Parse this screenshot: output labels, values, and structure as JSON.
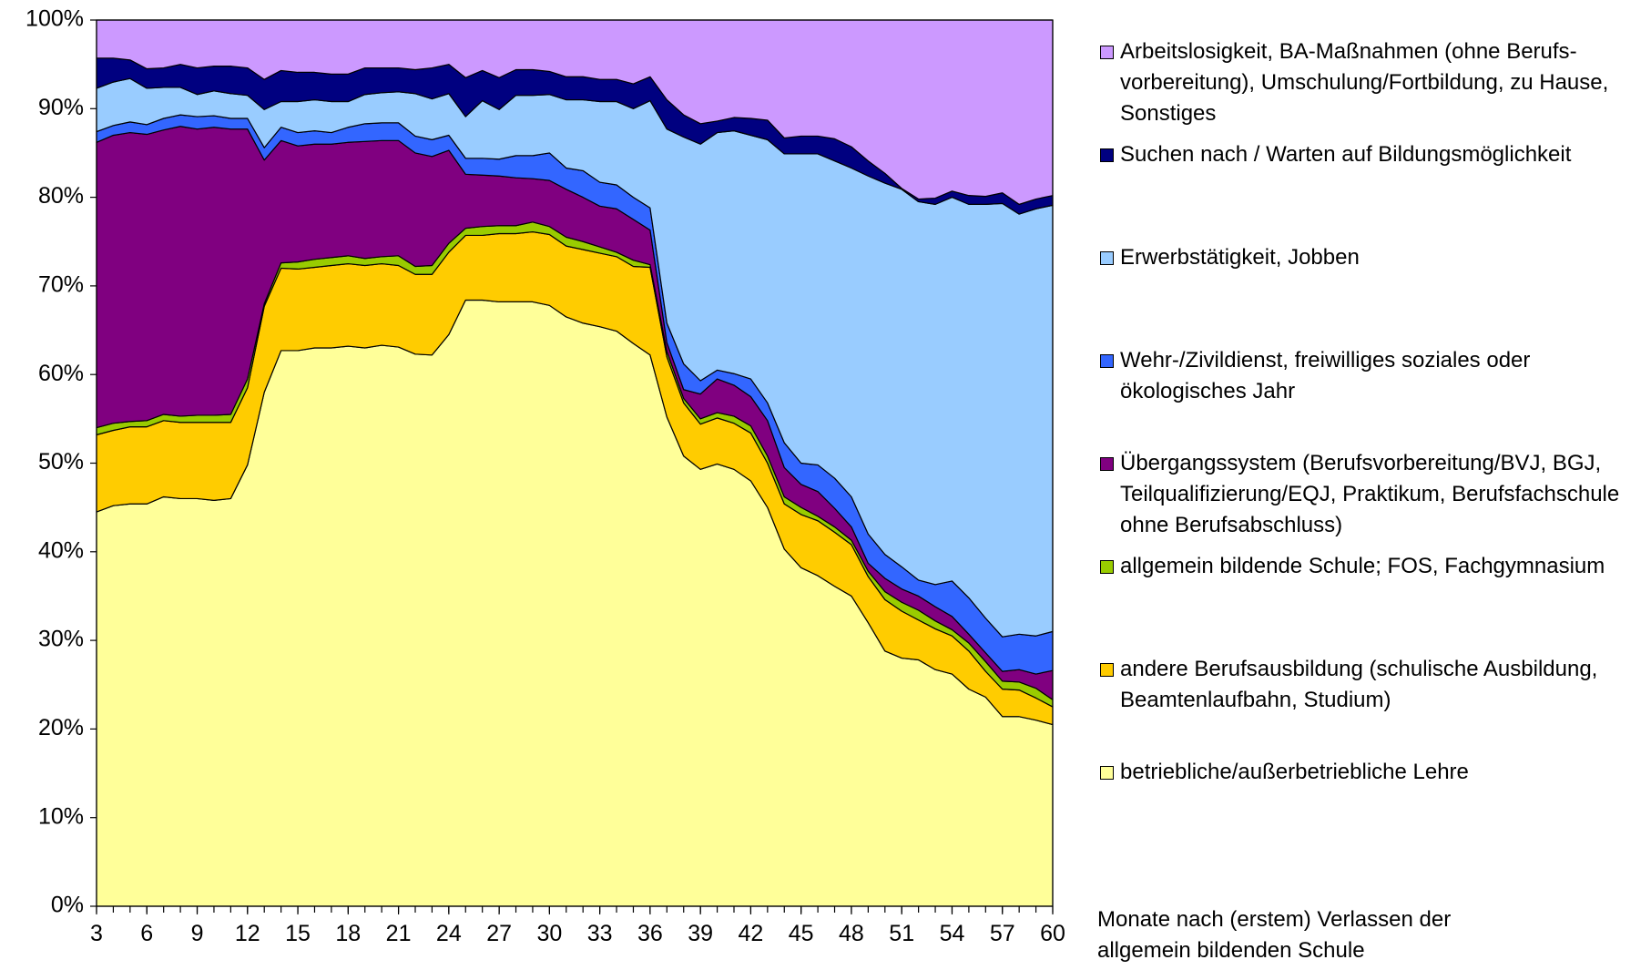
{
  "chart_data": {
    "type": "stacked_area",
    "x_label": "Monate nach (erstem) Verlassen der allgemein bildenden Schule",
    "x": [
      3,
      4,
      5,
      6,
      7,
      8,
      9,
      10,
      11,
      12,
      13,
      14,
      15,
      16,
      17,
      18,
      19,
      20,
      21,
      22,
      23,
      24,
      25,
      26,
      27,
      28,
      29,
      30,
      31,
      32,
      33,
      34,
      35,
      36,
      37,
      38,
      39,
      40,
      41,
      42,
      43,
      44,
      45,
      46,
      47,
      48,
      49,
      50,
      51,
      52,
      53,
      54,
      55,
      56,
      57,
      58,
      59,
      60
    ],
    "xlim": [
      3,
      60
    ],
    "xticks": [
      3,
      6,
      9,
      12,
      15,
      18,
      21,
      24,
      27,
      30,
      33,
      36,
      39,
      42,
      45,
      48,
      51,
      54,
      57,
      60
    ],
    "ylim": [
      0,
      100
    ],
    "yticks": [
      {
        "value": 0,
        "label": "0%"
      },
      {
        "value": 10,
        "label": "10%"
      },
      {
        "value": 20,
        "label": "20%"
      },
      {
        "value": 30,
        "label": "30%"
      },
      {
        "value": 40,
        "label": "40%"
      },
      {
        "value": 50,
        "label": "50%"
      },
      {
        "value": 60,
        "label": "60%"
      },
      {
        "value": 70,
        "label": "70%"
      },
      {
        "value": 80,
        "label": "80%"
      },
      {
        "value": 90,
        "label": "90%"
      },
      {
        "value": 100,
        "label": "100%"
      }
    ],
    "grid": false,
    "legend": "right",
    "series": [
      {
        "name": "betriebliche/außerbetriebliche Lehre",
        "color": "#ffff99",
        "values": [
          44.5,
          45.2,
          45.4,
          45.4,
          46.2,
          46.0,
          46.0,
          45.8,
          46.0,
          49.8,
          58.0,
          62.7,
          62.7,
          63.0,
          63.0,
          63.2,
          63.0,
          63.3,
          63.1,
          62.3,
          62.2,
          64.5,
          68.4,
          68.4,
          68.2,
          68.2,
          68.2,
          67.8,
          66.5,
          65.8,
          65.4,
          64.9,
          63.5,
          62.2,
          55.2,
          50.8,
          49.3,
          49.9,
          49.3,
          48.0,
          45.0,
          40.3,
          38.2,
          37.3,
          36.1,
          35.0,
          32.0,
          28.8,
          28.0,
          27.8,
          26.7,
          26.2,
          24.5,
          23.6,
          21.4,
          21.4,
          21.0,
          20.5
        ]
      },
      {
        "name": "andere Berufsausbildung (schulische Ausbildung, Beamtenlaufbahn, Studium)",
        "color": "#ffcc00",
        "values": [
          8.7,
          8.5,
          8.7,
          8.7,
          8.6,
          8.6,
          8.6,
          8.8,
          8.6,
          8.7,
          9.7,
          9.3,
          9.2,
          9.1,
          9.3,
          9.3,
          9.3,
          9.2,
          9.2,
          9.0,
          9.1,
          9.3,
          7.3,
          7.3,
          7.7,
          7.7,
          7.9,
          8.0,
          8.0,
          8.3,
          8.3,
          8.4,
          8.7,
          9.9,
          6.8,
          6.0,
          5.1,
          5.2,
          5.2,
          5.4,
          5.0,
          5.1,
          6.0,
          6.2,
          6.1,
          5.8,
          5.2,
          5.8,
          5.3,
          4.5,
          4.6,
          4.3,
          4.3,
          2.9,
          3.1,
          3.0,
          2.5,
          2.0
        ]
      },
      {
        "name": "allgemein bildende Schule; FOS, Fachgymnasium",
        "color": "#99cc00",
        "values": [
          0.8,
          0.8,
          0.6,
          0.7,
          0.7,
          0.7,
          0.8,
          0.8,
          0.9,
          1.0,
          0.3,
          0.6,
          0.8,
          0.9,
          0.9,
          0.9,
          0.8,
          0.8,
          1.1,
          0.9,
          1.0,
          1.0,
          0.8,
          1.0,
          0.9,
          0.9,
          1.1,
          0.9,
          1.0,
          0.9,
          0.7,
          0.5,
          0.7,
          0.3,
          0.6,
          0.5,
          0.6,
          0.6,
          0.8,
          0.8,
          0.8,
          0.8,
          0.8,
          0.5,
          0.6,
          0.5,
          0.6,
          0.9,
          1.0,
          1.1,
          0.9,
          0.7,
          0.9,
          1.1,
          0.9,
          0.9,
          1.1,
          0.8
        ]
      },
      {
        "name": "Übergangssystem (Berufsvorbereitung/BVJ, BGJ, Teilqualifizierung/EQJ, Praktikum, Berufsfach­schule ohne Berufsabschluss)",
        "color": "#800080",
        "values": [
          32.2,
          32.5,
          32.6,
          32.3,
          32.1,
          32.7,
          32.3,
          32.5,
          32.2,
          28.2,
          16.2,
          13.8,
          13.1,
          13.0,
          12.8,
          12.8,
          13.2,
          13.1,
          13.0,
          12.8,
          12.3,
          10.5,
          6.1,
          5.8,
          5.6,
          5.4,
          4.9,
          5.2,
          5.4,
          5.0,
          4.6,
          4.9,
          4.6,
          3.9,
          1.0,
          1.0,
          2.8,
          3.8,
          3.5,
          3.3,
          4.0,
          3.3,
          2.6,
          2.8,
          2.1,
          1.5,
          0.9,
          1.5,
          1.5,
          1.6,
          1.6,
          1.5,
          1.0,
          1.0,
          1.1,
          1.4,
          1.6,
          3.3
        ]
      },
      {
        "name": "Wehr-/Zivildienst, freiwilliges soziales oder ökologisches Jahr",
        "color": "#3366ff",
        "values": [
          1.2,
          1.1,
          1.2,
          1.1,
          1.3,
          1.3,
          1.4,
          1.3,
          1.2,
          1.2,
          1.4,
          1.5,
          1.5,
          1.5,
          1.3,
          1.7,
          2.0,
          2.0,
          2.0,
          1.9,
          1.9,
          1.7,
          1.8,
          1.9,
          1.9,
          2.5,
          2.6,
          3.1,
          2.4,
          3.0,
          2.7,
          2.7,
          2.5,
          2.5,
          2.2,
          2.9,
          1.5,
          1.0,
          1.3,
          2.0,
          2.0,
          2.8,
          2.4,
          3.0,
          3.4,
          3.4,
          3.3,
          2.7,
          2.5,
          1.8,
          2.5,
          4.0,
          4.1,
          3.9,
          3.9,
          4.0,
          4.3,
          4.4
        ]
      },
      {
        "name": "Erwerbstätigkeit, Jobben",
        "color": "#99ccff",
        "values": [
          4.9,
          4.9,
          4.9,
          4.1,
          3.5,
          3.1,
          2.5,
          2.8,
          2.8,
          2.6,
          4.3,
          2.9,
          3.5,
          3.5,
          3.5,
          2.9,
          3.3,
          3.4,
          3.5,
          4.8,
          4.6,
          4.7,
          4.7,
          6.5,
          5.6,
          6.8,
          6.8,
          6.6,
          7.7,
          8.0,
          9.1,
          9.4,
          10.0,
          12.1,
          21.9,
          25.6,
          26.7,
          26.8,
          27.4,
          27.5,
          29.7,
          32.6,
          34.9,
          35.1,
          35.8,
          37.1,
          40.4,
          41.9,
          42.6,
          42.7,
          42.9,
          43.3,
          44.4,
          46.7,
          48.9,
          47.4,
          48.2,
          48.1
        ]
      },
      {
        "name": "Suchen nach / Warten auf Bildungsmöglichkeit",
        "color": "#000080",
        "values": [
          3.4,
          2.7,
          2.1,
          2.2,
          2.2,
          2.6,
          3.0,
          2.8,
          3.1,
          3.1,
          3.4,
          3.5,
          3.3,
          3.1,
          3.1,
          3.1,
          3.0,
          2.8,
          2.7,
          2.7,
          3.5,
          3.3,
          4.4,
          3.4,
          3.6,
          2.9,
          2.9,
          2.6,
          2.6,
          2.6,
          2.5,
          2.5,
          2.8,
          2.7,
          3.3,
          2.5,
          2.3,
          1.3,
          1.5,
          1.9,
          2.2,
          1.8,
          2.0,
          2.0,
          2.5,
          2.4,
          1.7,
          1.1,
          0.1,
          0.3,
          0.7,
          0.7,
          1.0,
          0.9,
          1.2,
          1.1,
          1.1,
          1.1
        ]
      },
      {
        "name": "Arbeitslosigkeit, BA-Maßnahmen (ohne Berufs­vorbereitung), Umschulung/Fortbildung, zu Hause, Sonstiges",
        "color": "#cc99ff",
        "values": [
          4.3,
          4.3,
          4.5,
          5.5,
          5.4,
          5.0,
          5.4,
          5.2,
          5.2,
          5.4,
          6.7,
          5.7,
          5.9,
          5.9,
          6.1,
          6.1,
          5.4,
          5.4,
          5.4,
          5.6,
          5.4,
          5.0,
          6.5,
          5.7,
          6.5,
          5.6,
          5.6,
          5.8,
          6.4,
          6.4,
          6.7,
          6.7,
          7.2,
          6.4,
          9.0,
          10.7,
          11.7,
          11.4,
          11.0,
          11.1,
          11.3,
          13.3,
          13.1,
          13.1,
          13.4,
          14.3,
          15.9,
          17.3,
          19.0,
          20.2,
          20.1,
          19.3,
          19.8,
          19.9,
          19.5,
          20.8,
          20.2,
          19.8
        ]
      }
    ]
  }
}
